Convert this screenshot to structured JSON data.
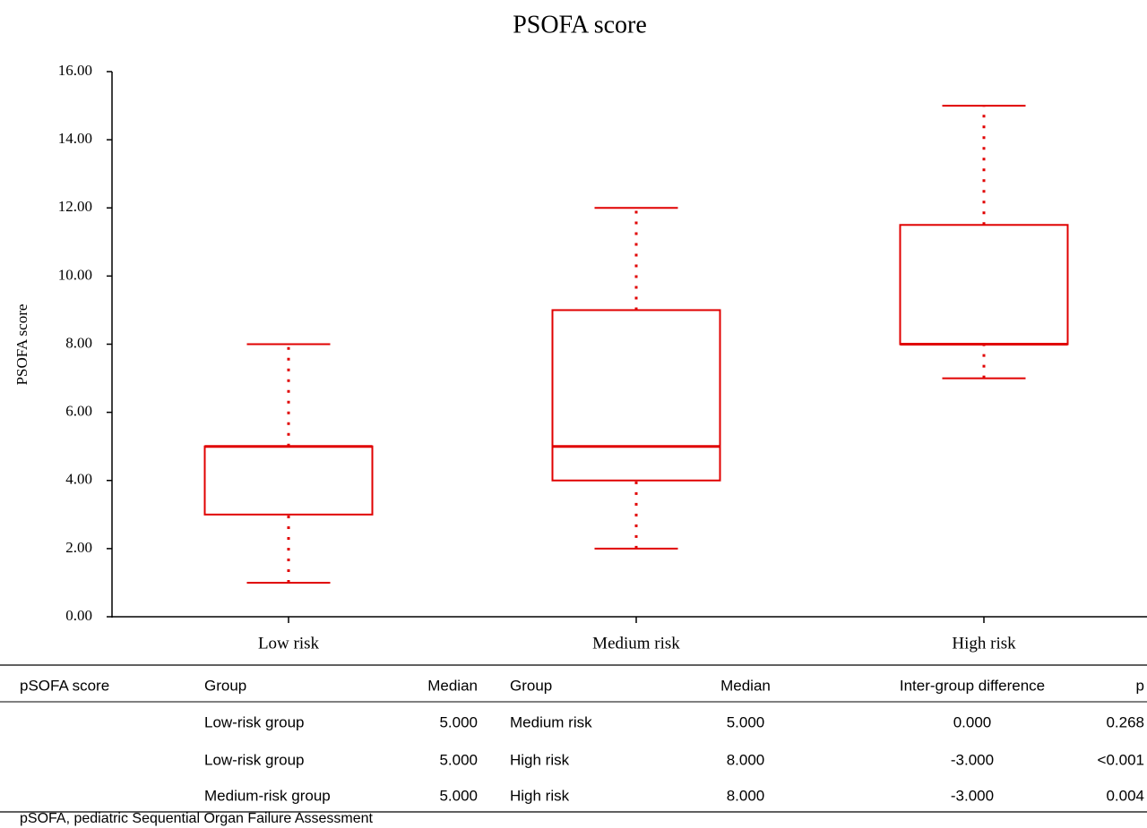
{
  "chart_data": {
    "type": "box",
    "title": "PSOFA score",
    "y_label": "PSOFA score",
    "categories": [
      "Low risk",
      "Medium risk",
      "High risk"
    ],
    "boxes": [
      {
        "min": 1,
        "q1": 3,
        "median": 5,
        "q3": 5,
        "max": 8
      },
      {
        "min": 2,
        "q1": 4,
        "median": 5,
        "q3": 9,
        "max": 12
      },
      {
        "min": 7,
        "q1": 8,
        "median": 8,
        "q3": 11.5,
        "max": 15
      }
    ],
    "color": "#e00000",
    "ylim": [
      0,
      16
    ],
    "yticks": [
      {
        "value": 0,
        "label": "0.00"
      },
      {
        "value": 2,
        "label": "2.00"
      },
      {
        "value": 4,
        "label": "4.00"
      },
      {
        "value": 6,
        "label": "6.00"
      },
      {
        "value": 8,
        "label": "8.00"
      },
      {
        "value": 10,
        "label": "10.00"
      },
      {
        "value": 12,
        "label": "12.00"
      },
      {
        "value": 14,
        "label": "14.00"
      },
      {
        "value": 16,
        "label": "16.00"
      }
    ]
  },
  "table": {
    "header": [
      "pSOFA score",
      "Group",
      "Median",
      "Group",
      "Median",
      "Inter-group difference",
      "p"
    ],
    "rows": [
      [
        "Low-risk group",
        "5.000",
        "Medium risk",
        "5.000",
        "0.000",
        "0.268"
      ],
      [
        "Low-risk group",
        "5.000",
        "High risk",
        "8.000",
        "-3.000",
        "<0.001"
      ],
      [
        "Medium-risk group",
        "5.000",
        "High risk",
        "8.000",
        "-3.000",
        "0.004"
      ]
    ],
    "footnote": "pSOFA, pediatric Sequential Organ Failure Assessment"
  }
}
